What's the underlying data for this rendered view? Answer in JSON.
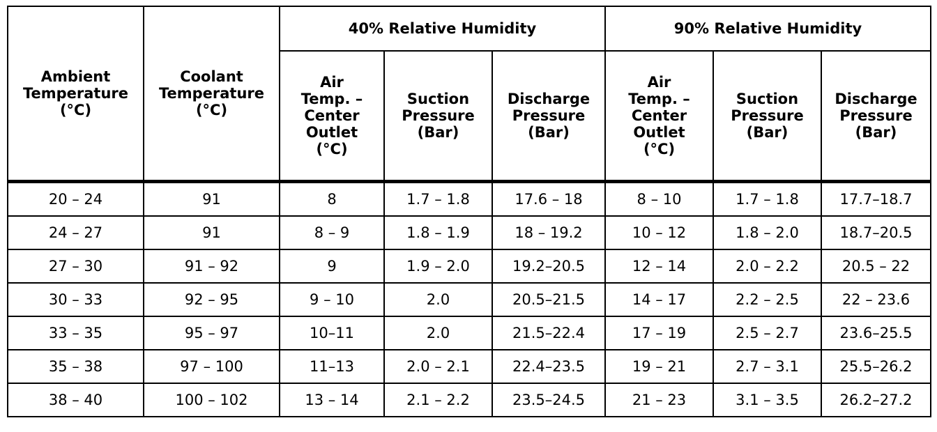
{
  "table": {
    "groups": [
      "40% Relative Humidity",
      "90% Relative Humidity"
    ],
    "columns": [
      "Ambient\nTemperature\n(°C)",
      "Coolant\nTemperature\n(°C)",
      "Air\nTemp. –\nCenter\nOutlet\n(°C)",
      "Suction\nPressure\n(Bar)",
      "Discharge\nPressure\n(Bar)",
      "Air\nTemp. –\nCenter\nOutlet\n(°C)",
      "Suction\nPressure\n(Bar)",
      "Discharge\nPressure\n(Bar)"
    ],
    "rows": [
      [
        "20 – 24",
        "91",
        "8",
        "1.7 – 1.8",
        "17.6 – 18",
        "8 – 10",
        "1.7 – 1.8",
        "17.7–18.7"
      ],
      [
        "24 – 27",
        "91",
        "8 – 9",
        "1.8 – 1.9",
        "18 – 19.2",
        "10 – 12",
        "1.8 – 2.0",
        "18.7–20.5"
      ],
      [
        "27 – 30",
        "91 – 92",
        "9",
        "1.9 – 2.0",
        "19.2–20.5",
        "12 – 14",
        "2.0 – 2.2",
        "20.5 – 22"
      ],
      [
        "30 – 33",
        "92 – 95",
        "9 – 10",
        "2.0",
        "20.5–21.5",
        "14 – 17",
        "2.2 – 2.5",
        "22 – 23.6"
      ],
      [
        "33 – 35",
        "95 – 97",
        "10–11",
        "2.0",
        "21.5–22.4",
        "17 – 19",
        "2.5 – 2.7",
        "23.6–25.5"
      ],
      [
        "35 – 38",
        "97 – 100",
        "11–13",
        "2.0 – 2.1",
        "22.4–23.5",
        "19 – 21",
        "2.7 – 3.1",
        "25.5–26.2"
      ],
      [
        "38 – 40",
        "100 – 102",
        "13 – 14",
        "2.1 – 2.2",
        "23.5–24.5",
        "21 – 23",
        "3.1 – 3.5",
        "26.2–27.2"
      ]
    ]
  }
}
